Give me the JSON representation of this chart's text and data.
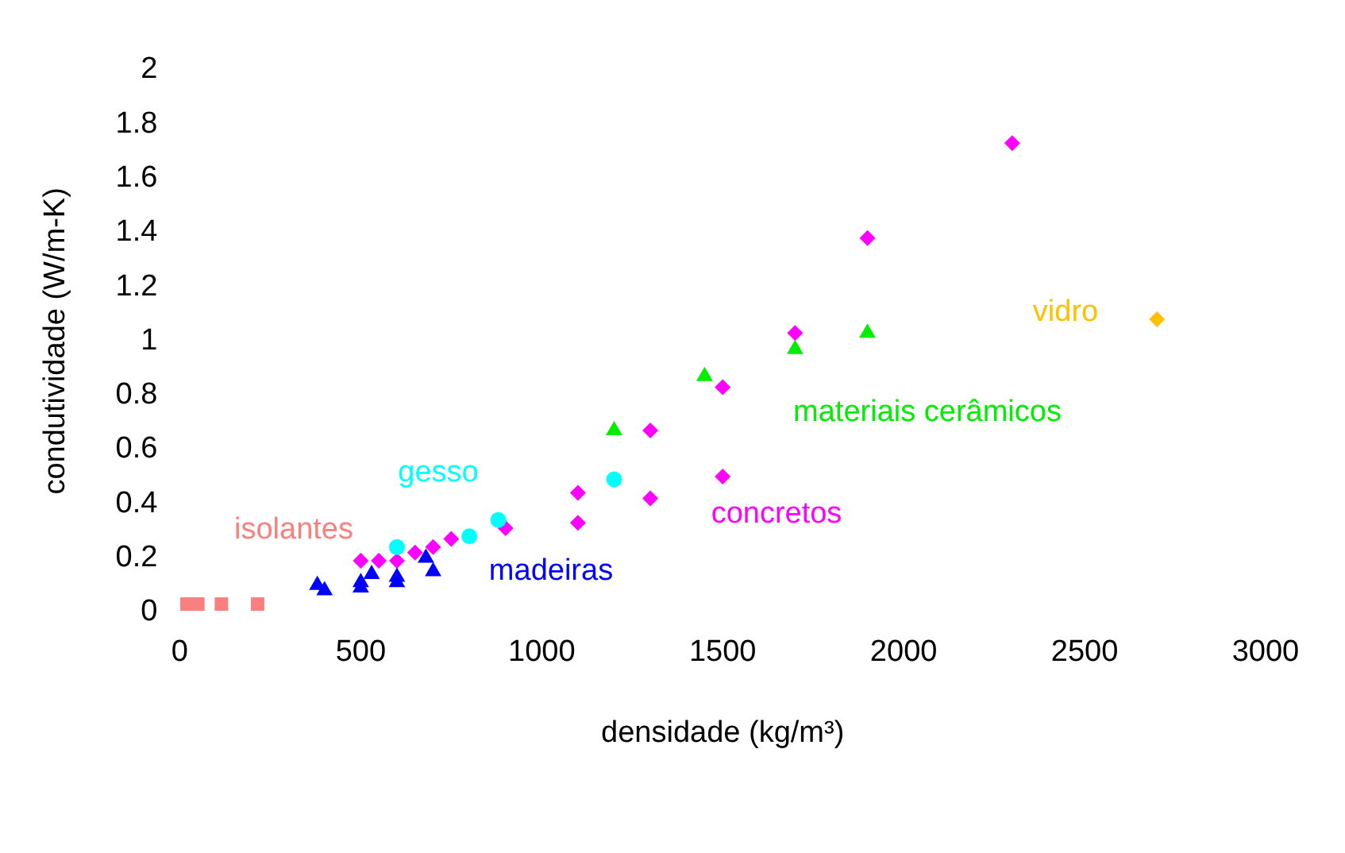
{
  "chart_data": {
    "type": "scatter",
    "xlabel": "densidade (kg/m³)",
    "ylabel": "condutividade (W/m-K)",
    "xlim": [
      0,
      3000
    ],
    "xticks": [
      0,
      500,
      1000,
      1500,
      2000,
      2500,
      3000
    ],
    "ylim": [
      0,
      2
    ],
    "yticks": [
      0,
      0.2,
      0.4,
      0.6,
      0.8,
      1,
      1.2,
      1.4,
      1.6,
      1.8,
      2
    ],
    "grid": false,
    "legend": false,
    "series": [
      {
        "name": "isolantes",
        "color": "#fa8080",
        "marker": "square",
        "x": [
          20,
          50,
          115,
          215
        ],
        "values": [
          0.03,
          0.03,
          0.03,
          0.03
        ]
      },
      {
        "name": "madeiras",
        "color": "#0000ff",
        "marker": "triangle",
        "x": [
          380,
          400,
          500,
          500,
          530,
          600,
          600,
          680,
          700
        ],
        "values": [
          0.1,
          0.08,
          0.11,
          0.09,
          0.14,
          0.13,
          0.11,
          0.2,
          0.15
        ]
      },
      {
        "name": "gesso",
        "color": "#00ffff",
        "marker": "circle",
        "x": [
          600,
          800,
          880,
          1200
        ],
        "values": [
          0.24,
          0.28,
          0.34,
          0.49
        ]
      },
      {
        "name": "concretos",
        "color": "#ff00ff",
        "marker": "diamond",
        "x": [
          500,
          550,
          600,
          650,
          700,
          750,
          900,
          1100,
          1100,
          1300,
          1300,
          1500,
          1500,
          1700,
          1900,
          2300
        ],
        "values": [
          0.19,
          0.19,
          0.19,
          0.22,
          0.24,
          0.27,
          0.31,
          0.33,
          0.44,
          0.42,
          0.67,
          0.5,
          0.83,
          1.03,
          1.38,
          1.73
        ]
      },
      {
        "name": "materiais cerâmicos",
        "color": "#00ee00",
        "marker": "triangle",
        "x": [
          1200,
          1450,
          1700,
          1900
        ],
        "values": [
          0.67,
          0.87,
          0.97,
          1.03
        ]
      },
      {
        "name": "vidro",
        "color": "#ffc000",
        "marker": "diamond",
        "x": [
          2700
        ],
        "values": [
          1.08
        ]
      }
    ]
  }
}
